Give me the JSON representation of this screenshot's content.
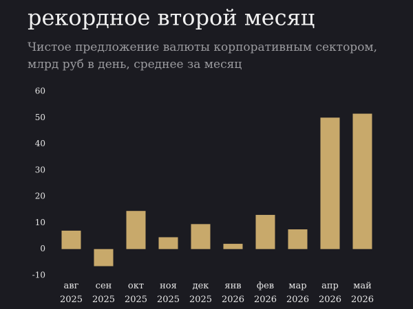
{
  "chart_data": {
    "type": "bar",
    "title": "рекордное второй месяц",
    "subtitle": "Чистое предложение валюты корпоративным сектором,\nмлрд руб в день, среднее за месяц",
    "categories": [
      "авг\n2025",
      "сен\n2025",
      "окт\n2025",
      "ноя\n2025",
      "дек\n2025",
      "янв\n2026",
      "фев\n2026",
      "мар\n2026",
      "апр\n2026",
      "май\n2026"
    ],
    "values": [
      7,
      -6.5,
      14.5,
      4.5,
      9.5,
      2,
      13,
      7.5,
      50,
      51.5
    ],
    "color": "#c8a96b",
    "ylim": [
      -10,
      60
    ],
    "yticks": [
      -10,
      0,
      10,
      20,
      30,
      40,
      50,
      60
    ],
    "grid": false
  }
}
